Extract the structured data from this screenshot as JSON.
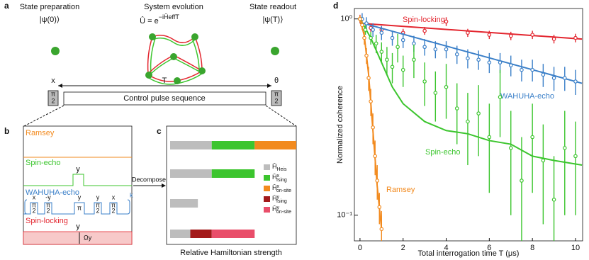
{
  "panel_a": {
    "label": "a",
    "steps": [
      "State preparation",
      "System evolution",
      "State readout"
    ],
    "initial_state": "|ψ(0)⟩",
    "evolution_base": "Û = e",
    "evolution_exponent": "−iĤeffT",
    "final_state": "|ψ(T)⟩",
    "first_axis": "x",
    "last_axis": "θ",
    "duration": "T",
    "pulse_num": "π",
    "pulse_den": "2",
    "sequence": "Control pulse sequence"
  },
  "panel_b": {
    "label": "b",
    "sequences": [
      "Ramsey",
      "Spin-echo",
      "WAHUHA-echo",
      "Spin-locking"
    ],
    "echo_axis": "y",
    "wahuha_pulses": [
      {
        "axis": "x",
        "num": "π",
        "den": "2"
      },
      {
        "axis": "-y",
        "num": "π",
        "den": "2"
      },
      {
        "axis": "y",
        "num": "π"
      },
      {
        "axis": "y",
        "num": "π",
        "den": "2"
      },
      {
        "axis": "x",
        "num": "π",
        "den": "2"
      }
    ],
    "repeat": "k",
    "lock_axis": "y",
    "lock_strength": "Ωy"
  },
  "panel_c": {
    "label": "c",
    "decompose": "Decompose",
    "xlabel": "Relative Hamiltonian strength",
    "legend": [
      {
        "base": "Ĥ",
        "sub": "Heis",
        "color": "#bdbdbd"
      },
      {
        "base": "Ĥ",
        "sup": "x",
        "sub": "Ising",
        "color": "#3cc52e"
      },
      {
        "base": "Ĥ",
        "sup": "x",
        "sub": "on-site",
        "color": "#f28a1e"
      },
      {
        "base": "Ĥ",
        "sup": "y",
        "sub": "Ising",
        "color": "#a31a1a"
      },
      {
        "base": "Ĥ",
        "sup": "y",
        "sub": "on-site",
        "color": "#e94e6a"
      }
    ],
    "bars": [
      {
        "segments": [
          {
            "value": 0.33,
            "color": "#bdbdbd"
          },
          {
            "value": 0.34,
            "color": "#3cc52e"
          },
          {
            "value": 0.33,
            "color": "#f28a1e"
          }
        ]
      },
      {
        "segments": [
          {
            "value": 0.33,
            "color": "#bdbdbd"
          },
          {
            "value": 0.34,
            "color": "#3cc52e"
          }
        ]
      },
      {
        "segments": [
          {
            "value": 0.22,
            "color": "#bdbdbd"
          }
        ]
      },
      {
        "segments": [
          {
            "value": 0.16,
            "color": "#bdbdbd"
          },
          {
            "value": 0.17,
            "color": "#a31a1a"
          },
          {
            "value": 0.34,
            "color": "#e94e6a"
          }
        ]
      }
    ]
  },
  "chart_data": {
    "type": "scatter",
    "panel": "d",
    "xlabel": "Total interrogation time T (μs)",
    "ylabel": "Normalized coherence",
    "xlim": [
      -0.26,
      10.33
    ],
    "ylim": [
      0.074,
      1.13
    ],
    "log_y": true,
    "xticks": [
      0,
      2,
      4,
      6,
      8,
      10
    ],
    "yticks": [
      {
        "value": 0.1,
        "label": "10⁻¹"
      },
      {
        "value": 1,
        "label": "10⁰"
      }
    ],
    "series": [
      {
        "name": "Spin-locking",
        "color": "#e3262f",
        "x": [
          0,
          0.5,
          1,
          2,
          3,
          4,
          5,
          6,
          7,
          8,
          9,
          10
        ],
        "values": [
          1.0,
          0.9,
          0.88,
          0.85,
          0.87,
          0.97,
          0.85,
          0.83,
          0.82,
          0.83,
          0.79,
          0.8
        ],
        "errors": [
          0.05,
          0.04,
          0.04,
          0.04,
          0.04,
          0.05,
          0.04,
          0.04,
          0.04,
          0.04,
          0.04,
          0.04
        ],
        "fit_x": [
          0,
          10.3
        ],
        "fit_values": [
          0.95,
          0.79
        ]
      },
      {
        "name": "WAHUHA-echo",
        "color": "#3a7fc8",
        "x": [
          0.1,
          0.3,
          0.6,
          1,
          1.5,
          2,
          2.5,
          3,
          3.5,
          4,
          4.5,
          5,
          5.5,
          6,
          6.5,
          7,
          7.5,
          8,
          8.5,
          9,
          9.5,
          10
        ],
        "values": [
          1.0,
          0.95,
          0.88,
          0.85,
          0.8,
          0.78,
          0.75,
          0.72,
          0.7,
          0.7,
          0.66,
          0.63,
          0.62,
          0.6,
          0.6,
          0.58,
          0.55,
          0.55,
          0.52,
          0.5,
          0.5,
          0.48
        ],
        "errors": [
          0.07,
          0.07,
          0.07,
          0.07,
          0.07,
          0.07,
          0.07,
          0.07,
          0.07,
          0.07,
          0.07,
          0.07,
          0.07,
          0.07,
          0.07,
          0.07,
          0.07,
          0.07,
          0.07,
          0.07,
          0.07,
          0.07
        ],
        "fit_x": [
          0,
          10.3
        ],
        "fit_values": [
          0.96,
          0.47
        ]
      },
      {
        "name": "Spin-echo",
        "color": "#3cc52e",
        "x": [
          0,
          0.25,
          0.5,
          0.75,
          1,
          1.25,
          1.5,
          1.75,
          2,
          2.5,
          3,
          3.5,
          4,
          4.5,
          5,
          5.5,
          6,
          6.5,
          7,
          7.5,
          8,
          8.5,
          9,
          9.5,
          10
        ],
        "values": [
          1.0,
          0.88,
          0.8,
          0.75,
          0.68,
          0.62,
          0.57,
          0.72,
          0.55,
          0.62,
          0.48,
          0.42,
          0.45,
          0.35,
          0.3,
          0.33,
          0.25,
          0.4,
          0.22,
          0.15,
          0.25,
          0.19,
          0.12,
          0.22,
          0.2
        ],
        "errors": [
          0.03,
          0.05,
          0.06,
          0.08,
          0.08,
          0.1,
          0.1,
          0.12,
          0.1,
          0.12,
          0.12,
          0.12,
          0.14,
          0.12,
          0.12,
          0.13,
          0.12,
          0.15,
          0.12,
          0.1,
          0.12,
          0.1,
          0.08,
          0.12,
          0.1
        ],
        "fit_x": [
          0,
          0.5,
          1,
          1.5,
          2,
          3,
          4,
          5,
          6,
          7,
          8,
          9,
          10.3
        ],
        "fit_values": [
          1.0,
          0.8,
          0.6,
          0.45,
          0.37,
          0.3,
          0.27,
          0.26,
          0.24,
          0.23,
          0.2,
          0.19,
          0.18
        ]
      },
      {
        "name": "Ramsey",
        "color": "#f28a1e",
        "x": [
          0,
          0.1,
          0.2,
          0.3,
          0.4,
          0.5,
          0.6,
          0.7,
          0.8,
          0.9,
          1.0
        ],
        "values": [
          1.0,
          0.93,
          0.8,
          0.65,
          0.5,
          0.38,
          0.28,
          0.2,
          0.15,
          0.11,
          0.085
        ],
        "errors": [
          0.04,
          0.05,
          0.06,
          0.06,
          0.07,
          0.06,
          0.05,
          0.04,
          0.03,
          0.02,
          0.02
        ],
        "fit_x": [
          0,
          0.2,
          0.4,
          0.6,
          0.8,
          1.0
        ],
        "fit_values": [
          1.0,
          0.82,
          0.52,
          0.27,
          0.14,
          0.085
        ]
      }
    ]
  }
}
